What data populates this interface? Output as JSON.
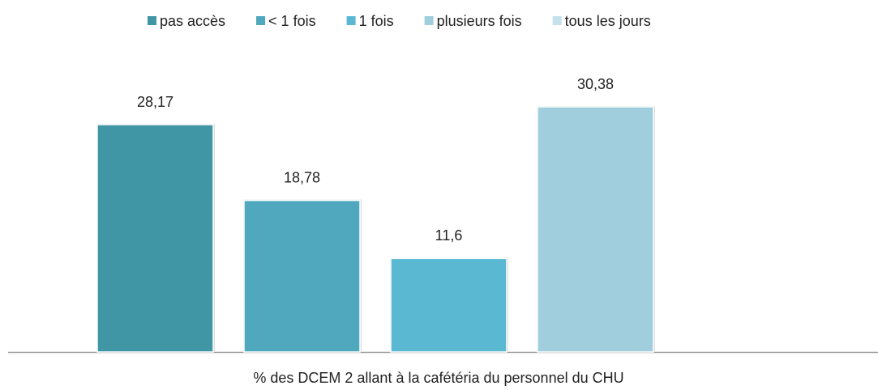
{
  "chart_data": {
    "type": "bar",
    "x_label": "% des DCEM 2 allant à la cafétéria du personnel du CHU",
    "categories": [
      null
    ],
    "series": [
      {
        "name": "pas accès",
        "color": "#4196a6",
        "values": [
          28.17
        ],
        "value_labels": [
          "28,17"
        ]
      },
      {
        "name": "< 1 fois",
        "color": "#4fa8be",
        "values": [
          18.78
        ],
        "value_labels": [
          "18,78"
        ]
      },
      {
        "name": "1 fois",
        "color": "#5bb8d2",
        "values": [
          11.6
        ],
        "value_labels": [
          "11,6"
        ]
      },
      {
        "name": "plusieurs fois",
        "color": "#a0cedd",
        "values": [
          30.38
        ],
        "value_labels": [
          "30,38"
        ]
      },
      {
        "name": "tous les jours",
        "color": "#c5e2ec",
        "values": [
          null
        ]
      }
    ],
    "legend": "top"
  }
}
